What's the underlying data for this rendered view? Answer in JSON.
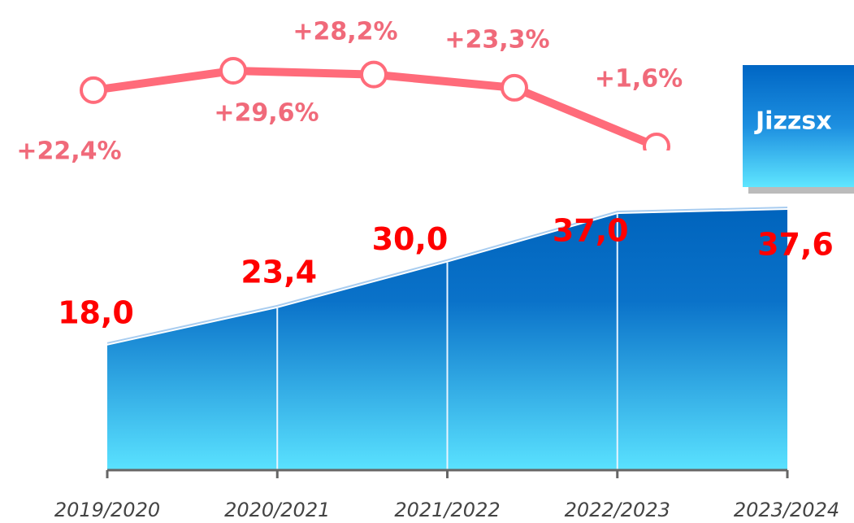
{
  "chart_data": {
    "type": "area",
    "badge": "Jizzsx",
    "categories": [
      "2019/2020",
      "2020/2021",
      "2021/2022",
      "2022/2023",
      "2023/2024"
    ],
    "series": [
      {
        "type": "area",
        "color": "#0068c0",
        "values": [
          18.0,
          23.4,
          30.0,
          37.0,
          37.6
        ],
        "value_labels": [
          "18,0",
          "23,4",
          "30,0",
          "37,0",
          "37,6"
        ]
      },
      {
        "type": "line",
        "axis": "y2",
        "color": "#ff6b7a",
        "values": [
          22.4,
          29.6,
          28.2,
          23.3,
          1.6
        ],
        "value_labels": [
          "+22,4%",
          "+29,6%",
          "+28,2%",
          "+23,3%",
          "+1,6%"
        ]
      }
    ]
  }
}
